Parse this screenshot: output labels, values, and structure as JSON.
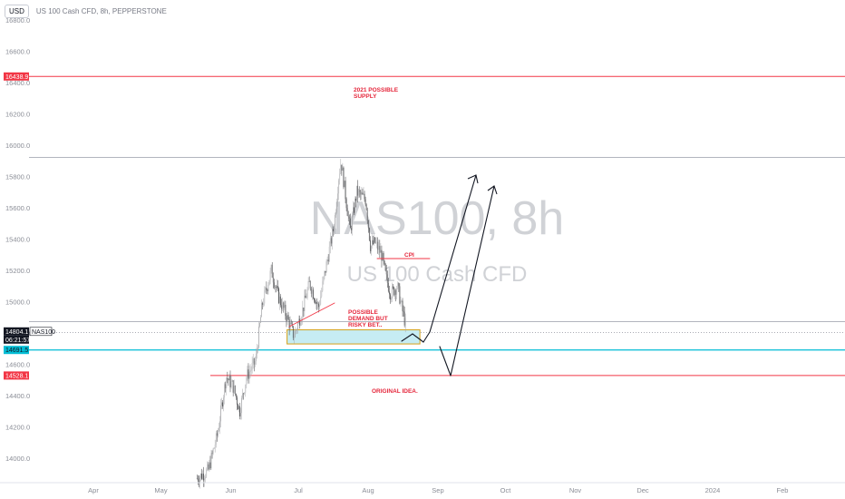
{
  "header": {
    "currency_button": "USD",
    "symbol_description": "US 100 Cash CFD, 8h, PEPPERSTONE"
  },
  "watermark": {
    "line1": "NAS100, 8h",
    "line2": "US 100 Cash CFD"
  },
  "colors": {
    "up_candle": "#a9aaad",
    "down_candle": "#3a3b3e",
    "red_level": "#f23645",
    "zone_fill": "#c6ecf3",
    "zone_border": "#d4a017",
    "cyan_line": "#00bcd4",
    "arrow": "#131722"
  },
  "chart_data": {
    "type": "candlestick",
    "symbol": "NAS100",
    "timeframe": "8h",
    "ylim": [
      13850,
      16880
    ],
    "y_ticks": [
      14000,
      14200,
      14400,
      14600,
      14800,
      15000,
      15200,
      15400,
      15600,
      15800,
      16000,
      16200,
      16400,
      16600,
      16800
    ],
    "y_tick_labels": [
      "14000.0",
      "14200.0",
      "14400.0",
      "14600.0",
      "14800.0",
      "15000.0",
      "15200.0",
      "15400.0",
      "15600.0",
      "15800.0",
      "16000.0",
      "16200.0",
      "16400.0",
      "16600.0",
      "16800.0"
    ],
    "x_labels": [
      "Apr",
      "May",
      "Jun",
      "Jul",
      "Aug",
      "Sep",
      "Oct",
      "Nov",
      "Dec",
      "2024",
      "Feb"
    ],
    "x_label_dates": [
      "2023-04-01",
      "2023-05-01",
      "2023-06-01",
      "2023-07-01",
      "2023-08-01",
      "2023-09-01",
      "2023-10-01",
      "2023-11-01",
      "2023-12-01",
      "2024-01-01",
      "2024-02-01"
    ],
    "price_path": [
      [
        "2023-05-17",
        13870
      ],
      [
        "2023-05-22",
        13920
      ],
      [
        "2023-05-26",
        14150
      ],
      [
        "2023-05-30",
        14520
      ],
      [
        "2023-06-02",
        14460
      ],
      [
        "2023-06-05",
        14300
      ],
      [
        "2023-06-08",
        14520
      ],
      [
        "2023-06-12",
        14620
      ],
      [
        "2023-06-15",
        14980
      ],
      [
        "2023-06-19",
        15200
      ],
      [
        "2023-06-22",
        15040
      ],
      [
        "2023-06-26",
        14900
      ],
      [
        "2023-06-29",
        14780
      ],
      [
        "2023-07-03",
        14950
      ],
      [
        "2023-07-06",
        15120
      ],
      [
        "2023-07-10",
        14960
      ],
      [
        "2023-07-13",
        15200
      ],
      [
        "2023-07-17",
        15500
      ],
      [
        "2023-07-19",
        15800
      ],
      [
        "2023-07-20",
        15900
      ],
      [
        "2023-07-24",
        15450
      ],
      [
        "2023-07-27",
        15700
      ],
      [
        "2023-07-31",
        15650
      ],
      [
        "2023-08-02",
        15350
      ],
      [
        "2023-08-04",
        15380
      ],
      [
        "2023-08-07",
        15300
      ],
      [
        "2023-08-09",
        15150
      ],
      [
        "2023-08-11",
        15050
      ],
      [
        "2023-08-14",
        15100
      ],
      [
        "2023-08-16",
        14960
      ],
      [
        "2023-08-18",
        14830
      ]
    ],
    "horizontal_levels": [
      {
        "label": "16438.9",
        "price": 16438.9,
        "color": "#f23645"
      },
      {
        "label": "14528.1",
        "price": 14528.1,
        "color": "#f23645"
      }
    ],
    "current_price": {
      "value": "14804.1",
      "symbol": "NAS100",
      "countdown": "06:21:57"
    },
    "cyan_level": {
      "label": "14691.5",
      "price": 14691.5
    },
    "demand_zone": {
      "from": "2023-06-26",
      "to": "2023-08-24",
      "top": 14820,
      "bottom": 14730
    },
    "annotations": [
      "2021 POSSIBLE\nSUPPLY",
      "CPI",
      "POSSIBLE\nDEMAND BUT\nRISKY BET..",
      "ORIGINAL IDEA."
    ]
  }
}
